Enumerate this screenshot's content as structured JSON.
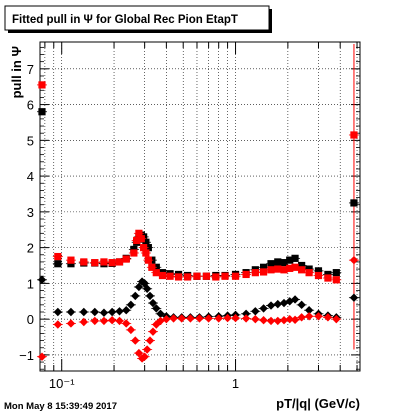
{
  "chart_data": {
    "type": "scatter",
    "title": "Fitted pull in Ψ for Global Rec Pion EtapT",
    "xlabel": "pT/|q| (GeV/c)",
    "ylabel": "pull in Ψ",
    "xscale": "log",
    "xlim": [
      0.075,
      5.2
    ],
    "ylim": [
      -1.45,
      7.75
    ],
    "x_ticks": [
      {
        "value": 0.1,
        "label": "10⁻¹"
      },
      {
        "value": 1,
        "label": "1"
      }
    ],
    "y_ticks": [
      -1,
      0,
      1,
      2,
      3,
      4,
      5,
      6,
      7
    ],
    "grid": true,
    "timestamp": "Mon May  8 15:39:49 2017",
    "series": [
      {
        "color": "#000000",
        "marker": "square",
        "x": [
          0.077,
          0.095,
          0.113,
          0.134,
          0.155,
          0.175,
          0.195,
          0.215,
          0.235,
          0.26,
          0.27,
          0.278,
          0.287,
          0.296,
          0.305,
          0.315,
          0.33,
          0.35,
          0.38,
          0.42,
          0.47,
          0.53,
          0.6,
          0.68,
          0.77,
          0.87,
          1.0,
          1.15,
          1.3,
          1.45,
          1.6,
          1.75,
          1.9,
          2.05,
          2.2,
          2.4,
          2.65,
          3.0,
          3.4,
          3.8,
          4.8
        ],
        "y": [
          5.8,
          1.55,
          1.55,
          1.57,
          1.57,
          1.55,
          1.56,
          1.6,
          1.7,
          1.95,
          2.15,
          2.3,
          2.35,
          2.3,
          2.15,
          2.0,
          1.65,
          1.45,
          1.3,
          1.27,
          1.25,
          1.22,
          1.2,
          1.2,
          1.22,
          1.22,
          1.25,
          1.3,
          1.38,
          1.45,
          1.55,
          1.6,
          1.58,
          1.65,
          1.7,
          1.5,
          1.4,
          1.35,
          1.25,
          1.3,
          3.25
        ]
      },
      {
        "color": "#ff0000",
        "marker": "square",
        "x": [
          0.077,
          0.095,
          0.113,
          0.134,
          0.155,
          0.175,
          0.195,
          0.215,
          0.235,
          0.26,
          0.27,
          0.278,
          0.287,
          0.296,
          0.305,
          0.315,
          0.33,
          0.35,
          0.38,
          0.42,
          0.47,
          0.53,
          0.6,
          0.68,
          0.77,
          0.87,
          1.0,
          1.15,
          1.3,
          1.45,
          1.6,
          1.75,
          1.9,
          2.05,
          2.2,
          2.4,
          2.65,
          3.0,
          3.4,
          3.8,
          4.8
        ],
        "y": [
          6.55,
          1.75,
          1.65,
          1.6,
          1.58,
          1.6,
          1.58,
          1.6,
          1.68,
          1.85,
          2.2,
          2.4,
          2.25,
          2.0,
          1.85,
          1.65,
          1.45,
          1.3,
          1.22,
          1.2,
          1.18,
          1.18,
          1.2,
          1.2,
          1.18,
          1.2,
          1.2,
          1.25,
          1.3,
          1.32,
          1.38,
          1.4,
          1.38,
          1.42,
          1.45,
          1.38,
          1.3,
          1.22,
          1.15,
          1.1,
          5.15
        ]
      },
      {
        "color": "#000000",
        "marker": "diamond",
        "x": [
          0.077,
          0.095,
          0.113,
          0.134,
          0.155,
          0.175,
          0.195,
          0.215,
          0.235,
          0.25,
          0.265,
          0.278,
          0.29,
          0.3,
          0.31,
          0.322,
          0.335,
          0.35,
          0.37,
          0.4,
          0.44,
          0.49,
          0.55,
          0.62,
          0.7,
          0.8,
          0.9,
          1.0,
          1.15,
          1.3,
          1.45,
          1.6,
          1.75,
          1.9,
          2.05,
          2.2,
          2.4,
          2.65,
          3.0,
          3.4,
          3.8,
          4.8
        ],
        "y": [
          1.1,
          0.2,
          0.2,
          0.2,
          0.2,
          0.18,
          0.2,
          0.22,
          0.25,
          0.4,
          0.65,
          0.9,
          1.05,
          1.0,
          0.85,
          0.65,
          0.45,
          0.3,
          0.15,
          0.08,
          0.05,
          0.05,
          0.05,
          0.05,
          0.07,
          0.08,
          0.1,
          0.12,
          0.15,
          0.22,
          0.3,
          0.38,
          0.42,
          0.45,
          0.5,
          0.55,
          0.4,
          0.25,
          0.15,
          0.1,
          0.05,
          0.6
        ]
      },
      {
        "color": "#ff0000",
        "marker": "diamond",
        "x": [
          0.077,
          0.095,
          0.113,
          0.134,
          0.155,
          0.175,
          0.195,
          0.215,
          0.235,
          0.25,
          0.265,
          0.278,
          0.29,
          0.3,
          0.31,
          0.322,
          0.335,
          0.35,
          0.37,
          0.4,
          0.44,
          0.49,
          0.55,
          0.62,
          0.7,
          0.8,
          0.9,
          1.0,
          1.15,
          1.3,
          1.45,
          1.6,
          1.75,
          1.9,
          2.05,
          2.2,
          2.4,
          2.65,
          3.0,
          3.4,
          3.8,
          4.8
        ],
        "y": [
          -1.05,
          -0.15,
          -0.12,
          -0.08,
          -0.05,
          -0.05,
          -0.03,
          -0.05,
          -0.12,
          -0.3,
          -0.6,
          -0.95,
          -1.1,
          -1.05,
          -0.85,
          -0.6,
          -0.35,
          -0.15,
          -0.05,
          0.0,
          0.02,
          0.02,
          0.02,
          0.02,
          0.02,
          0.02,
          0.03,
          0.03,
          0.02,
          0.0,
          -0.03,
          -0.05,
          -0.05,
          -0.03,
          0.0,
          -0.02,
          0.05,
          0.08,
          0.08,
          0.05,
          0.0,
          1.65
        ]
      }
    ]
  }
}
